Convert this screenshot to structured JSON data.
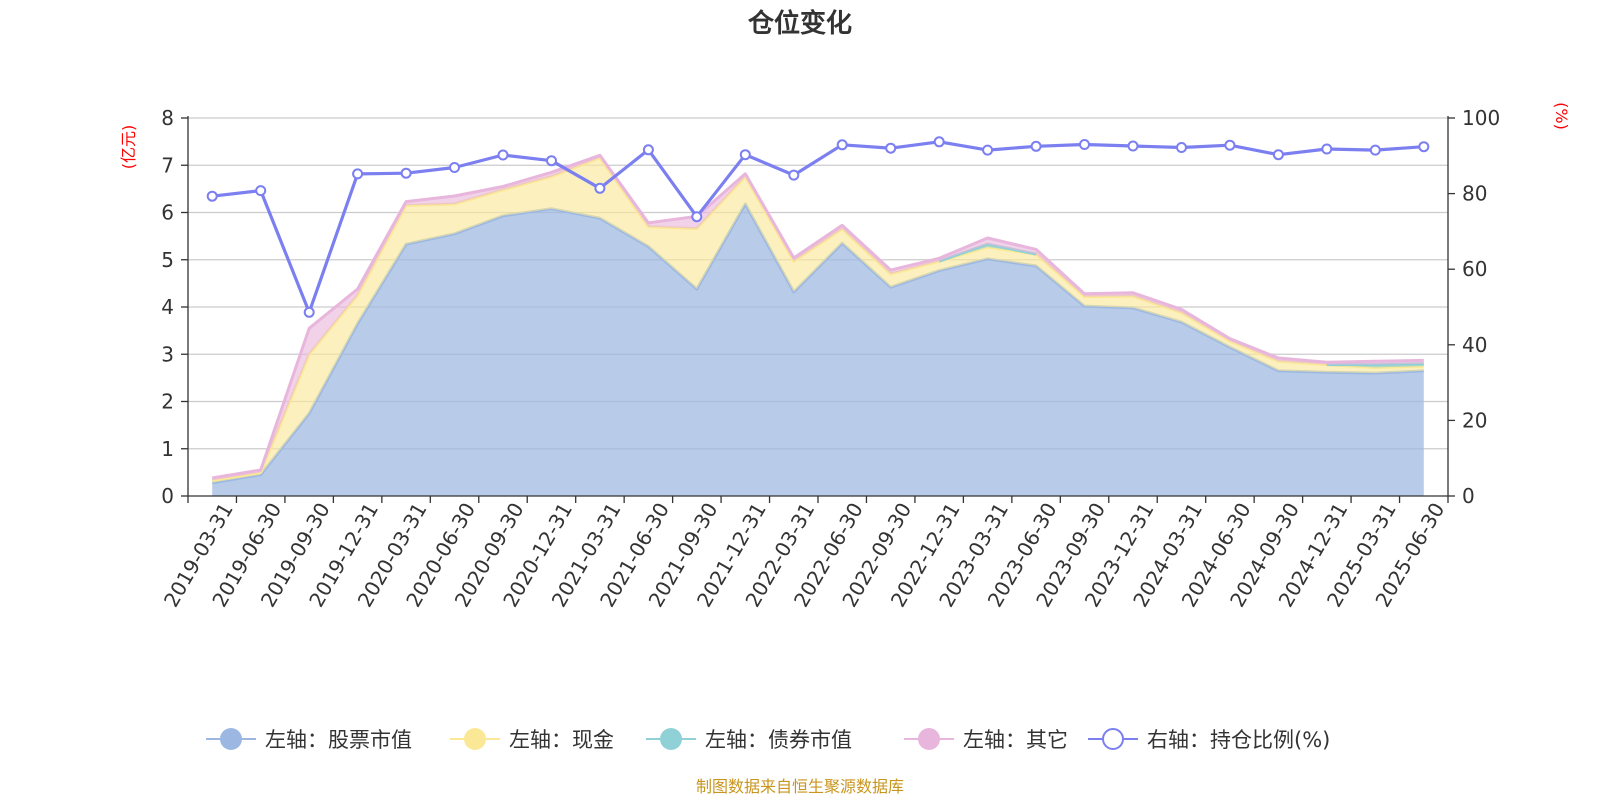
{
  "chart_data": {
    "type": "area",
    "title": "仓位变化",
    "left_unit": "(亿元)",
    "right_unit": "(%)",
    "left_ylim": [
      0,
      8
    ],
    "left_ticks": [
      0,
      1,
      2,
      3,
      4,
      5,
      6,
      7,
      8
    ],
    "right_ylim": [
      0,
      100
    ],
    "right_ticks": [
      0,
      20,
      40,
      60,
      80,
      100
    ],
    "grid": true,
    "categories": [
      "2019-03-31",
      "2019-06-30",
      "2019-09-30",
      "2019-12-31",
      "2020-03-31",
      "2020-06-30",
      "2020-09-30",
      "2020-12-31",
      "2021-03-31",
      "2021-06-30",
      "2021-09-30",
      "2021-12-31",
      "2022-03-31",
      "2022-06-30",
      "2022-09-30",
      "2022-12-31",
      "2023-03-31",
      "2023-06-30",
      "2023-09-30",
      "2023-12-31",
      "2024-03-31",
      "2024-06-30",
      "2024-09-30",
      "2024-12-31",
      "2025-03-31",
      "2025-06-30"
    ],
    "series": [
      {
        "name": "左轴：股票市值",
        "axis": "left",
        "stack": true,
        "color": "#9cb8e2",
        "values": [
          0.28,
          0.45,
          1.75,
          3.65,
          5.33,
          5.55,
          5.93,
          6.08,
          5.88,
          5.28,
          4.38,
          6.18,
          4.32,
          5.35,
          4.42,
          4.77,
          5.02,
          4.87,
          4.02,
          3.98,
          3.68,
          3.15,
          2.65,
          2.62,
          2.6,
          2.65
        ]
      },
      {
        "name": "左轴：现金",
        "axis": "left",
        "stack": true,
        "color": "#fae896",
        "values": [
          0.05,
          0.05,
          1.25,
          0.6,
          0.82,
          0.63,
          0.55,
          0.68,
          1.28,
          0.42,
          1.28,
          0.58,
          0.65,
          0.3,
          0.28,
          0.2,
          0.25,
          0.25,
          0.2,
          0.25,
          0.2,
          0.13,
          0.2,
          0.16,
          0.12,
          0.1
        ]
      },
      {
        "name": "左轴：债券市值",
        "axis": "left",
        "stack": true,
        "color": "#8fd1d6",
        "values": [
          0,
          0,
          0,
          0,
          0,
          0,
          0,
          0,
          0,
          0,
          0,
          0,
          0,
          0,
          0,
          0,
          0.06,
          0,
          0,
          0,
          0,
          0,
          0,
          0,
          0.06,
          0.05
        ]
      },
      {
        "name": "左轴：其它",
        "axis": "left",
        "stack": true,
        "color": "#e8b6dc",
        "values": [
          0.05,
          0.05,
          0.55,
          0.13,
          0.08,
          0.17,
          0.07,
          0.09,
          0.05,
          0.08,
          0.26,
          0.06,
          0.07,
          0.08,
          0.08,
          0.06,
          0.13,
          0.1,
          0.06,
          0.07,
          0.07,
          0.05,
          0.07,
          0.05,
          0.07,
          0.07
        ]
      },
      {
        "name": "右轴：持仓比例(%)",
        "axis": "right",
        "type": "line",
        "color": "#7b7ff0",
        "values": [
          79.3,
          80.8,
          48.6,
          85.2,
          85.4,
          86.9,
          90.2,
          88.7,
          81.4,
          91.6,
          73.9,
          90.3,
          84.9,
          92.9,
          92.0,
          93.7,
          91.5,
          92.5,
          93.0,
          92.6,
          92.2,
          92.8,
          90.3,
          91.8,
          91.5,
          92.4
        ]
      }
    ],
    "legend_position": "bottom",
    "source_note": "制图数据来自恒生聚源数据库"
  }
}
